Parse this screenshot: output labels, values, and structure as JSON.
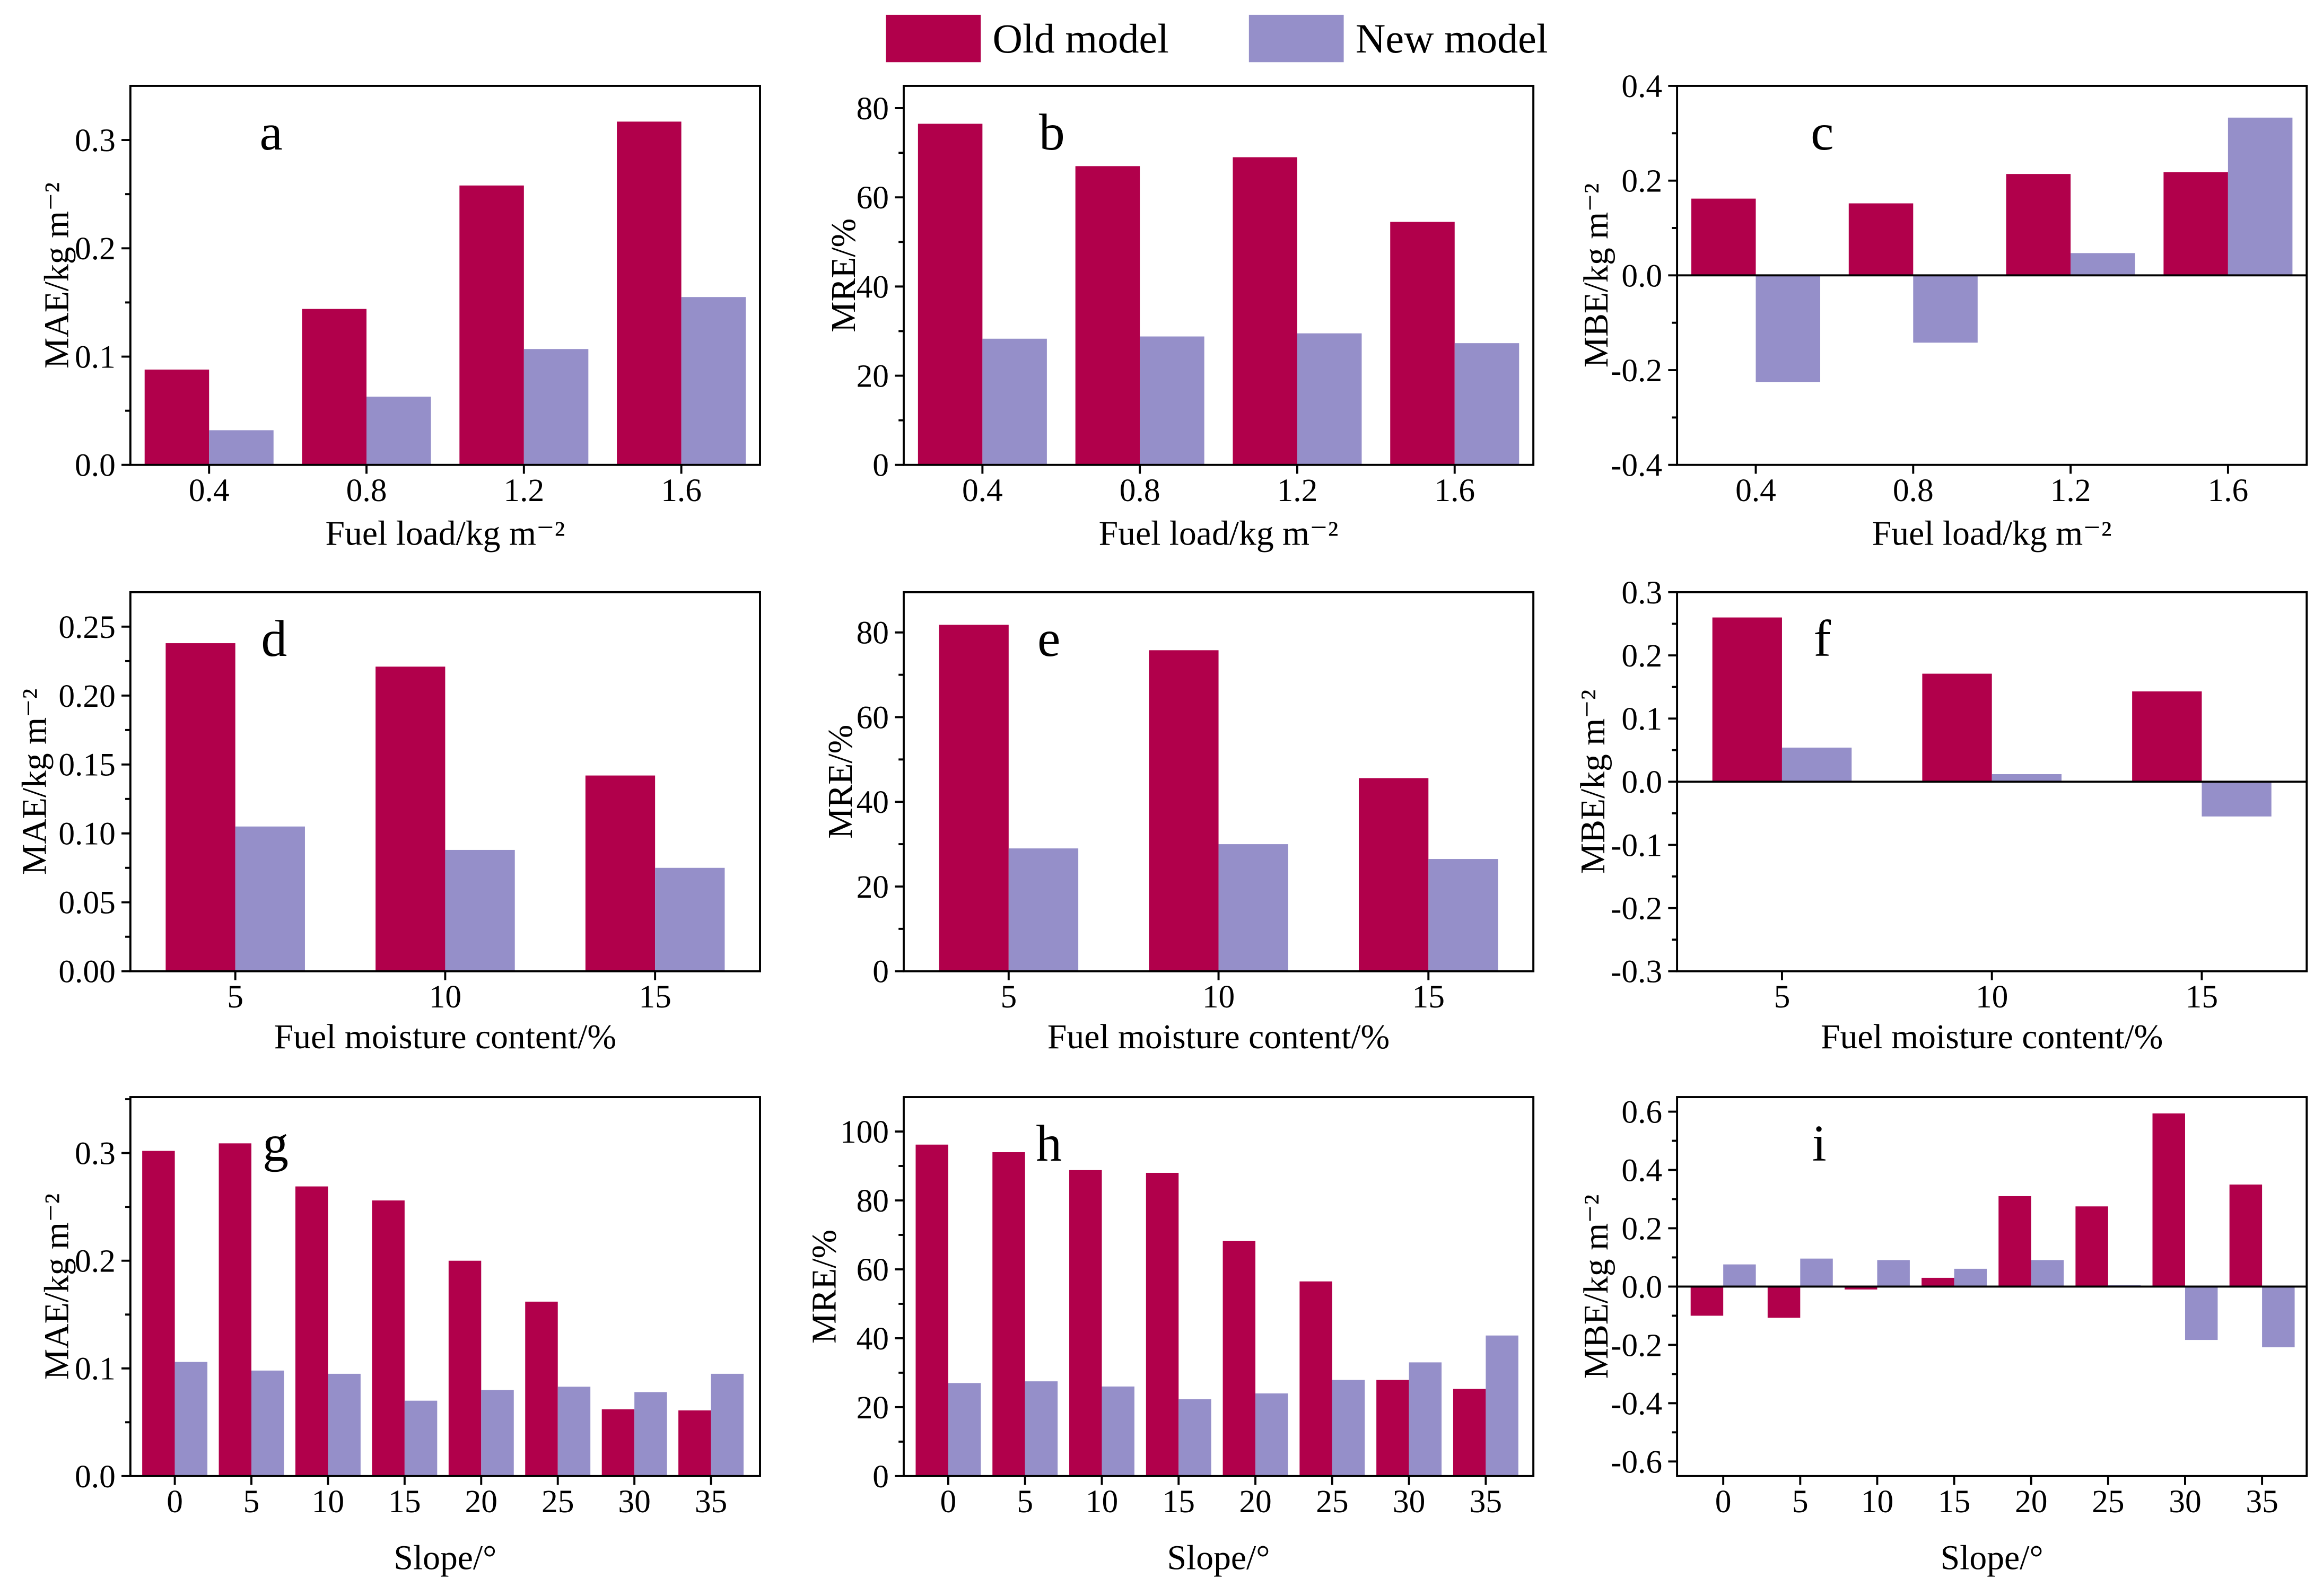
{
  "legend": {
    "items": [
      {
        "label": "Old model",
        "color": "#b1004b"
      },
      {
        "label": "New model",
        "color": "#958fc9"
      }
    ]
  },
  "chart_data": [
    {
      "panel_label": "a",
      "type": "bar",
      "xlabel": "Fuel load/kg m⁻²",
      "ylabel": "MAE/kg m⁻²",
      "categories": [
        "0.4",
        "0.8",
        "1.2",
        "1.6"
      ],
      "series": [
        {
          "name": "Old model",
          "values": [
            0.088,
            0.144,
            0.258,
            0.317
          ]
        },
        {
          "name": "New model",
          "values": [
            0.032,
            0.063,
            0.107,
            0.155
          ]
        }
      ],
      "ylim": [
        0,
        0.35
      ],
      "yticks": [
        0,
        0.1,
        0.2,
        0.3
      ],
      "ytick_labels": [
        "0.0",
        "0.1",
        "0.2",
        "0.3"
      ]
    },
    {
      "panel_label": "b",
      "type": "bar",
      "xlabel": "Fuel load/kg m⁻²",
      "ylabel": "MRE/%",
      "categories": [
        "0.4",
        "0.8",
        "1.2",
        "1.6"
      ],
      "series": [
        {
          "name": "Old model",
          "values": [
            76.5,
            67.0,
            69.0,
            54.5
          ]
        },
        {
          "name": "New model",
          "values": [
            28.3,
            28.8,
            29.5,
            27.3
          ]
        }
      ],
      "ylim": [
        0,
        85
      ],
      "yticks": [
        0,
        20,
        40,
        60,
        80
      ],
      "ytick_labels": [
        "0",
        "20",
        "40",
        "60",
        "80"
      ]
    },
    {
      "panel_label": "c",
      "type": "bar",
      "xlabel": "Fuel load/kg m⁻²",
      "ylabel": "MBE/kg m⁻²",
      "categories": [
        "0.4",
        "0.8",
        "1.2",
        "1.6"
      ],
      "series": [
        {
          "name": "Old model",
          "values": [
            0.162,
            0.152,
            0.214,
            0.218
          ]
        },
        {
          "name": "New model",
          "values": [
            -0.225,
            -0.142,
            0.047,
            0.333
          ]
        }
      ],
      "ylim": [
        -0.4,
        0.4
      ],
      "yticks": [
        -0.4,
        -0.2,
        0,
        0.2,
        0.4
      ],
      "ytick_labels": [
        "-0.4",
        "-0.2",
        "0.0",
        "0.2",
        "0.4"
      ]
    },
    {
      "panel_label": "d",
      "type": "bar",
      "xlabel": "Fuel moisture content/%",
      "ylabel": "MAE/kg m⁻²",
      "categories": [
        "5",
        "10",
        "15"
      ],
      "series": [
        {
          "name": "Old model",
          "values": [
            0.238,
            0.221,
            0.142
          ]
        },
        {
          "name": "New model",
          "values": [
            0.105,
            0.088,
            0.075
          ]
        }
      ],
      "ylim": [
        0,
        0.275
      ],
      "yticks": [
        0,
        0.05,
        0.1,
        0.15,
        0.2,
        0.25
      ],
      "ytick_labels": [
        "0.00",
        "0.05",
        "0.10",
        "0.15",
        "0.20",
        "0.25"
      ]
    },
    {
      "panel_label": "e",
      "type": "bar",
      "xlabel": "Fuel moisture content/%",
      "ylabel": "MRE/%",
      "categories": [
        "5",
        "10",
        "15"
      ],
      "series": [
        {
          "name": "Old model",
          "values": [
            81.8,
            75.8,
            45.6
          ]
        },
        {
          "name": "New model",
          "values": [
            29.0,
            30.0,
            26.5
          ]
        }
      ],
      "ylim": [
        0,
        89.5
      ],
      "yticks": [
        0,
        20,
        40,
        60,
        80
      ],
      "ytick_labels": [
        "0",
        "20",
        "40",
        "60",
        "80"
      ]
    },
    {
      "panel_label": "f",
      "type": "bar",
      "xlabel": "Fuel moisture content/%",
      "ylabel": "MBE/kg m⁻²",
      "categories": [
        "5",
        "10",
        "15"
      ],
      "series": [
        {
          "name": "Old model",
          "values": [
            0.26,
            0.171,
            0.143
          ]
        },
        {
          "name": "New model",
          "values": [
            0.054,
            0.012,
            -0.055
          ]
        }
      ],
      "ylim": [
        -0.3,
        0.3
      ],
      "yticks": [
        -0.3,
        -0.2,
        -0.1,
        0,
        0.1,
        0.2,
        0.3
      ],
      "ytick_labels": [
        "-0.3",
        "-0.2",
        "-0.1",
        "0.0",
        "0.1",
        "0.2",
        "0.3"
      ]
    },
    {
      "panel_label": "g",
      "type": "bar",
      "xlabel": "Slope/°",
      "ylabel": "MAE/kg m⁻²",
      "categories": [
        "0",
        "5",
        "10",
        "15",
        "20",
        "25",
        "30",
        "35"
      ],
      "series": [
        {
          "name": "Old model",
          "values": [
            0.302,
            0.309,
            0.269,
            0.256,
            0.2,
            0.162,
            0.062,
            0.061
          ]
        },
        {
          "name": "New model",
          "values": [
            0.106,
            0.098,
            0.095,
            0.07,
            0.08,
            0.083,
            0.078,
            0.095
          ]
        }
      ],
      "ylim": [
        0,
        0.352
      ],
      "yticks": [
        0,
        0.1,
        0.2,
        0.3
      ],
      "ytick_labels": [
        "0.0",
        "0.1",
        "0.2",
        "0.3"
      ]
    },
    {
      "panel_label": "h",
      "type": "bar",
      "xlabel": "Slope/°",
      "ylabel": "MRE/%",
      "categories": [
        "0",
        "5",
        "10",
        "15",
        "20",
        "25",
        "30",
        "35"
      ],
      "series": [
        {
          "name": "Old model",
          "values": [
            96.2,
            94.0,
            88.8,
            88.0,
            68.3,
            56.5,
            27.9,
            25.3
          ]
        },
        {
          "name": "New model",
          "values": [
            27.0,
            27.5,
            26.0,
            22.3,
            24.0,
            27.9,
            33.0,
            40.8
          ]
        }
      ],
      "ylim": [
        0,
        110
      ],
      "yticks": [
        0,
        20,
        40,
        60,
        80,
        100
      ],
      "ytick_labels": [
        "0",
        "20",
        "40",
        "60",
        "80",
        "100"
      ]
    },
    {
      "panel_label": "i",
      "type": "bar",
      "xlabel": "Slope/°",
      "ylabel": "MBE/kg m⁻²",
      "categories": [
        "0",
        "5",
        "10",
        "15",
        "20",
        "25",
        "30",
        "35"
      ],
      "series": [
        {
          "name": "Old model",
          "values": [
            -0.1,
            -0.107,
            -0.01,
            0.03,
            0.31,
            0.275,
            0.594,
            0.35
          ]
        },
        {
          "name": "New model",
          "values": [
            0.076,
            0.096,
            0.091,
            0.061,
            0.091,
            0.005,
            -0.183,
            -0.208
          ]
        }
      ],
      "ylim": [
        -0.65,
        0.65
      ],
      "yticks": [
        -0.6,
        -0.4,
        -0.2,
        0,
        0.2,
        0.4,
        0.6
      ],
      "ytick_labels": [
        "-0.6",
        "-0.4",
        "-0.2",
        "0.0",
        "0.2",
        "0.4",
        "0.6"
      ]
    }
  ]
}
